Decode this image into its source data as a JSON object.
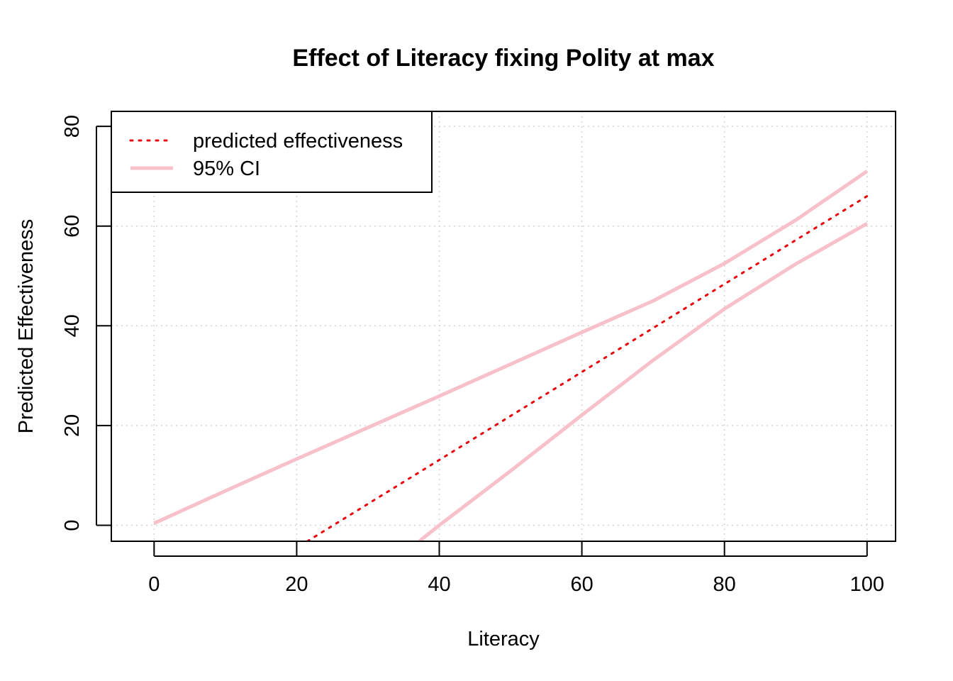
{
  "chart_data": {
    "type": "line",
    "title": "Effect of Literacy fixing Polity at max",
    "xlabel": "Literacy",
    "ylabel": "Predicted Effectiveness",
    "xlim": [
      -6,
      104
    ],
    "ylim": [
      -3.2,
      83
    ],
    "x_ticks": [
      0,
      20,
      40,
      60,
      80,
      100
    ],
    "y_ticks": [
      0,
      20,
      40,
      60,
      80
    ],
    "grid": true,
    "legend_position": "top-left",
    "colors": {
      "predicted": "#e8000b",
      "ci": "#f7c0cb",
      "grid": "#d3d3d3"
    },
    "series": [
      {
        "name": "predicted effectiveness",
        "style": "dotted",
        "x": [
          21.5,
          100
        ],
        "y": [
          -3.2,
          66
        ]
      },
      {
        "name": "95% CI",
        "style": "solid",
        "x": [
          0,
          10,
          20,
          30,
          40,
          50,
          60,
          70,
          80,
          90,
          100
        ],
        "y": [
          0.4,
          6.9,
          13.3,
          19.6,
          25.9,
          32.3,
          38.7,
          45.0,
          52.5,
          61.2,
          71.0
        ]
      },
      {
        "style": "solid",
        "x": [
          37.2,
          40,
          50,
          60,
          70,
          80,
          90,
          100
        ],
        "y": [
          -3.2,
          0,
          10.9,
          22.1,
          33.1,
          43.4,
          52.4,
          60.5
        ]
      }
    ]
  }
}
